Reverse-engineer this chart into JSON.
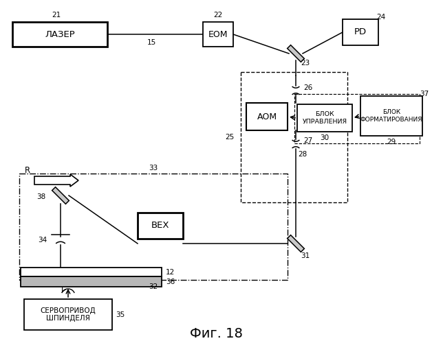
{
  "bg_color": "#f5f5f5",
  "fig_caption": "Фиг. 18",
  "labels": {
    "laser": "ЛАЗЕР",
    "eom": "EOM",
    "pd": "PD",
    "aom": "АОМ",
    "blok_upr": "БЛОК\nУПРАВЛЕНИЯ",
    "blok_form": "БЛОК\nФОРМАТИРОВАНИЯ",
    "bex": "ВЕХ",
    "servo": "СЕРВОПРИВОД\nШПИНДЕЛЯ"
  },
  "numbers": {
    "n12": "12",
    "n15": "15",
    "n21": "21",
    "n22": "22",
    "n23": "23",
    "n24": "24",
    "n25": "25",
    "n26": "26",
    "n27": "27",
    "n28": "28",
    "n29": "29",
    "n30": "30",
    "n31": "31",
    "n32": "32",
    "n33": "33",
    "n34": "34",
    "n35": "35",
    "n36": "36",
    "n37": "37",
    "n38": "38",
    "nR": "R"
  }
}
